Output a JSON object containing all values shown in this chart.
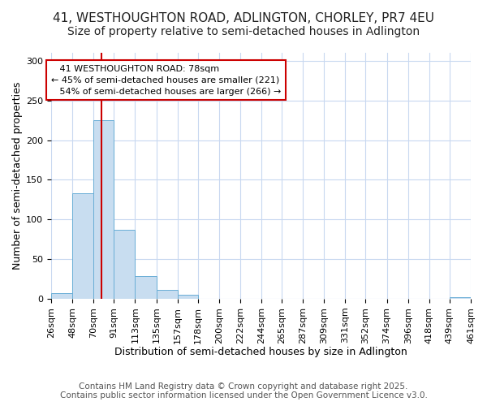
{
  "title_line1": "41, WESTHOUGHTON ROAD, ADLINGTON, CHORLEY, PR7 4EU",
  "title_line2": "Size of property relative to semi-detached houses in Adlington",
  "xlabel": "Distribution of semi-detached houses by size in Adlington",
  "ylabel": "Number of semi-detached properties",
  "bin_labels": [
    "26sqm",
    "48sqm",
    "70sqm",
    "91sqm",
    "113sqm",
    "135sqm",
    "157sqm",
    "178sqm",
    "200sqm",
    "222sqm",
    "244sqm",
    "265sqm",
    "287sqm",
    "309sqm",
    "331sqm",
    "352sqm",
    "374sqm",
    "396sqm",
    "418sqm",
    "439sqm",
    "461sqm"
  ],
  "bin_edges": [
    26,
    48,
    70,
    91,
    113,
    135,
    157,
    178,
    200,
    222,
    244,
    265,
    287,
    309,
    331,
    352,
    374,
    396,
    418,
    439,
    461
  ],
  "bar_heights": [
    7,
    133,
    225,
    87,
    29,
    11,
    5,
    0,
    0,
    0,
    0,
    0,
    0,
    0,
    0,
    0,
    0,
    0,
    0,
    2,
    0
  ],
  "bar_color": "#c8ddf0",
  "bar_edge_color": "#6aaed6",
  "property_size": 78,
  "vline_color": "#cc0000",
  "annotation_text": "   41 WESTHOUGHTON ROAD: 78sqm\n← 45% of semi-detached houses are smaller (221)\n   54% of semi-detached houses are larger (266) →",
  "annotation_box_color": "#cc0000",
  "ylim": [
    0,
    310
  ],
  "yticks": [
    0,
    50,
    100,
    150,
    200,
    250,
    300
  ],
  "footnote_line1": "Contains HM Land Registry data © Crown copyright and database right 2025.",
  "footnote_line2": "Contains public sector information licensed under the Open Government Licence v3.0.",
  "bg_color": "#ffffff",
  "plot_bg_color": "#ffffff",
  "grid_color": "#c8d8f0",
  "title_fontsize": 11,
  "subtitle_fontsize": 10,
  "axis_label_fontsize": 9,
  "tick_fontsize": 8,
  "footnote_fontsize": 7.5
}
